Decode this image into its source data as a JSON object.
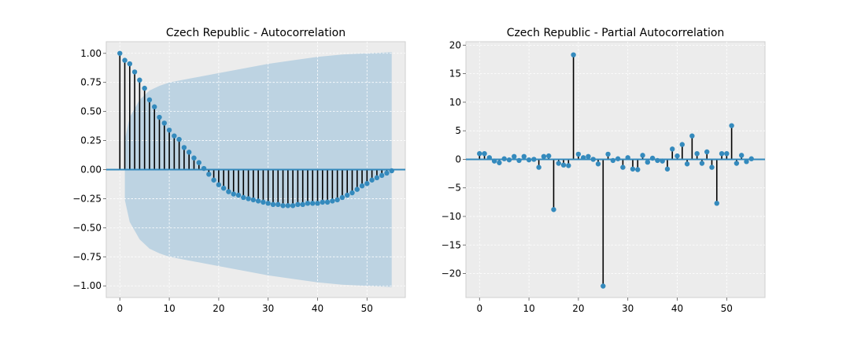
{
  "colors": {
    "marker": "#348ABD",
    "stem": "#000000",
    "band": "#BBD2E1",
    "background": "#ECECEC",
    "zero_line": "#348ABD"
  },
  "chart_data": [
    {
      "type": "stem",
      "title": "Czech Republic - Autocorrelation",
      "xlabel": "",
      "ylabel": "",
      "xlim": [
        -2.75,
        57.75
      ],
      "ylim": [
        -1.1,
        1.1
      ],
      "xticks": [
        0,
        10,
        20,
        30,
        40,
        50
      ],
      "yticks": [
        -1.0,
        -0.75,
        -0.5,
        -0.25,
        0.0,
        0.25,
        0.5,
        0.75,
        1.0
      ],
      "ytick_labels": [
        "−1.00",
        "−0.75",
        "−0.50",
        "−0.25",
        "0.00",
        "0.25",
        "0.50",
        "0.75",
        "1.00"
      ],
      "xtick_labels": [
        "0",
        "10",
        "20",
        "30",
        "40",
        "50"
      ],
      "grid": true,
      "x": [
        0,
        1,
        2,
        3,
        4,
        5,
        6,
        7,
        8,
        9,
        10,
        11,
        12,
        13,
        14,
        15,
        16,
        17,
        18,
        19,
        20,
        21,
        22,
        23,
        24,
        25,
        26,
        27,
        28,
        29,
        30,
        31,
        32,
        33,
        34,
        35,
        36,
        37,
        38,
        39,
        40,
        41,
        42,
        43,
        44,
        45,
        46,
        47,
        48,
        49,
        50,
        51,
        52,
        53,
        54,
        55
      ],
      "values": [
        1.0,
        0.94,
        0.91,
        0.84,
        0.77,
        0.7,
        0.6,
        0.54,
        0.45,
        0.4,
        0.34,
        0.29,
        0.26,
        0.19,
        0.15,
        0.1,
        0.06,
        0.01,
        -0.04,
        -0.09,
        -0.13,
        -0.16,
        -0.19,
        -0.21,
        -0.22,
        -0.24,
        -0.25,
        -0.26,
        -0.27,
        -0.28,
        -0.29,
        -0.3,
        -0.3,
        -0.31,
        -0.31,
        -0.31,
        -0.3,
        -0.3,
        -0.29,
        -0.29,
        -0.29,
        -0.28,
        -0.28,
        -0.27,
        -0.26,
        -0.24,
        -0.22,
        -0.2,
        -0.17,
        -0.14,
        -0.12,
        -0.09,
        -0.07,
        -0.05,
        -0.03,
        -0.01
      ],
      "confidence_band": {
        "x": [
          1,
          2,
          4,
          6,
          8,
          10,
          15,
          20,
          25,
          30,
          35,
          40,
          45,
          50,
          55
        ],
        "upper": [
          0.26,
          0.45,
          0.6,
          0.68,
          0.72,
          0.75,
          0.79,
          0.83,
          0.87,
          0.91,
          0.94,
          0.97,
          0.99,
          1.0,
          1.01
        ],
        "lower": [
          -0.26,
          -0.45,
          -0.6,
          -0.68,
          -0.72,
          -0.75,
          -0.79,
          -0.83,
          -0.87,
          -0.91,
          -0.94,
          -0.97,
          -0.99,
          -1.0,
          -1.01
        ]
      }
    },
    {
      "type": "stem",
      "title": "Czech Republic - Partial Autocorrelation",
      "xlabel": "",
      "ylabel": "",
      "xlim": [
        -2.75,
        57.75
      ],
      "ylim": [
        -24.2,
        20.6
      ],
      "xticks": [
        0,
        10,
        20,
        30,
        40,
        50
      ],
      "yticks": [
        -20,
        -15,
        -10,
        -5,
        0,
        5,
        10,
        15,
        20
      ],
      "ytick_labels": [
        "−20",
        "−15",
        "−10",
        "−5",
        "0",
        "5",
        "10",
        "15",
        "20"
      ],
      "xtick_labels": [
        "0",
        "10",
        "20",
        "30",
        "40",
        "50"
      ],
      "grid": true,
      "x": [
        0,
        1,
        2,
        3,
        4,
        5,
        6,
        7,
        8,
        9,
        10,
        11,
        12,
        13,
        14,
        15,
        16,
        17,
        18,
        19,
        20,
        21,
        22,
        23,
        24,
        25,
        26,
        27,
        28,
        29,
        30,
        31,
        32,
        33,
        34,
        35,
        36,
        37,
        38,
        39,
        40,
        41,
        42,
        43,
        44,
        45,
        46,
        47,
        48,
        49,
        50,
        51,
        52,
        53,
        54,
        55
      ],
      "values": [
        1.0,
        1.0,
        0.3,
        -0.3,
        -0.6,
        0.1,
        -0.1,
        0.5,
        -0.2,
        0.5,
        -0.1,
        0.0,
        -1.4,
        0.5,
        0.6,
        -8.8,
        -0.7,
        -1.0,
        -1.1,
        18.3,
        0.9,
        0.3,
        0.5,
        0.0,
        -0.8,
        -22.2,
        0.9,
        -0.2,
        0.1,
        -1.4,
        0.3,
        -1.7,
        -1.8,
        0.7,
        -0.5,
        0.2,
        -0.2,
        -0.3,
        -1.7,
        1.8,
        0.6,
        2.6,
        -0.8,
        4.1,
        1.0,
        -0.7,
        1.3,
        -1.4,
        -7.7,
        1.0,
        1.0,
        5.9,
        -0.7,
        0.7,
        -0.4,
        0.1
      ]
    }
  ]
}
